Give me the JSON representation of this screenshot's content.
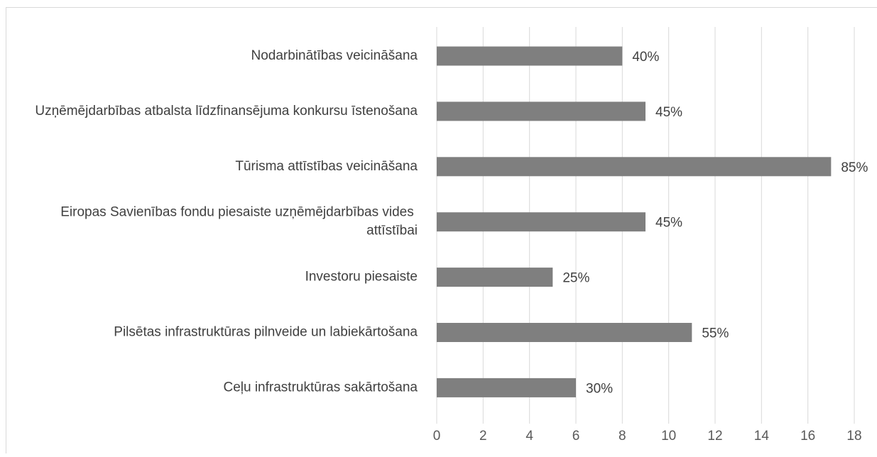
{
  "chart_data": {
    "type": "bar",
    "orientation": "horizontal",
    "categories": [
      "Nodarbinātības veicināšana",
      "Uzņēmējdarbības atbalsta līdzfinansējuma konkursu īstenošana",
      "Tūrisma attīstības veicināšana",
      "Eiropas Savienības fondu piesaiste uzņēmējdarbības vides attīstībai",
      "Investoru piesaiste",
      "Pilsētas infrastruktūras pilnveide un labiekārtošana",
      "Ceļu infrastruktūras sakārtošana"
    ],
    "values": [
      8,
      9,
      17,
      9,
      5,
      11,
      6
    ],
    "value_labels": [
      "40%",
      "45%",
      "85%",
      "45%",
      "25%",
      "55%",
      "30%"
    ],
    "color": "#7f7f7f",
    "xlim": [
      0,
      18
    ],
    "xticks": [
      0,
      2,
      4,
      6,
      8,
      10,
      12,
      14,
      16,
      18
    ],
    "grid": true
  }
}
